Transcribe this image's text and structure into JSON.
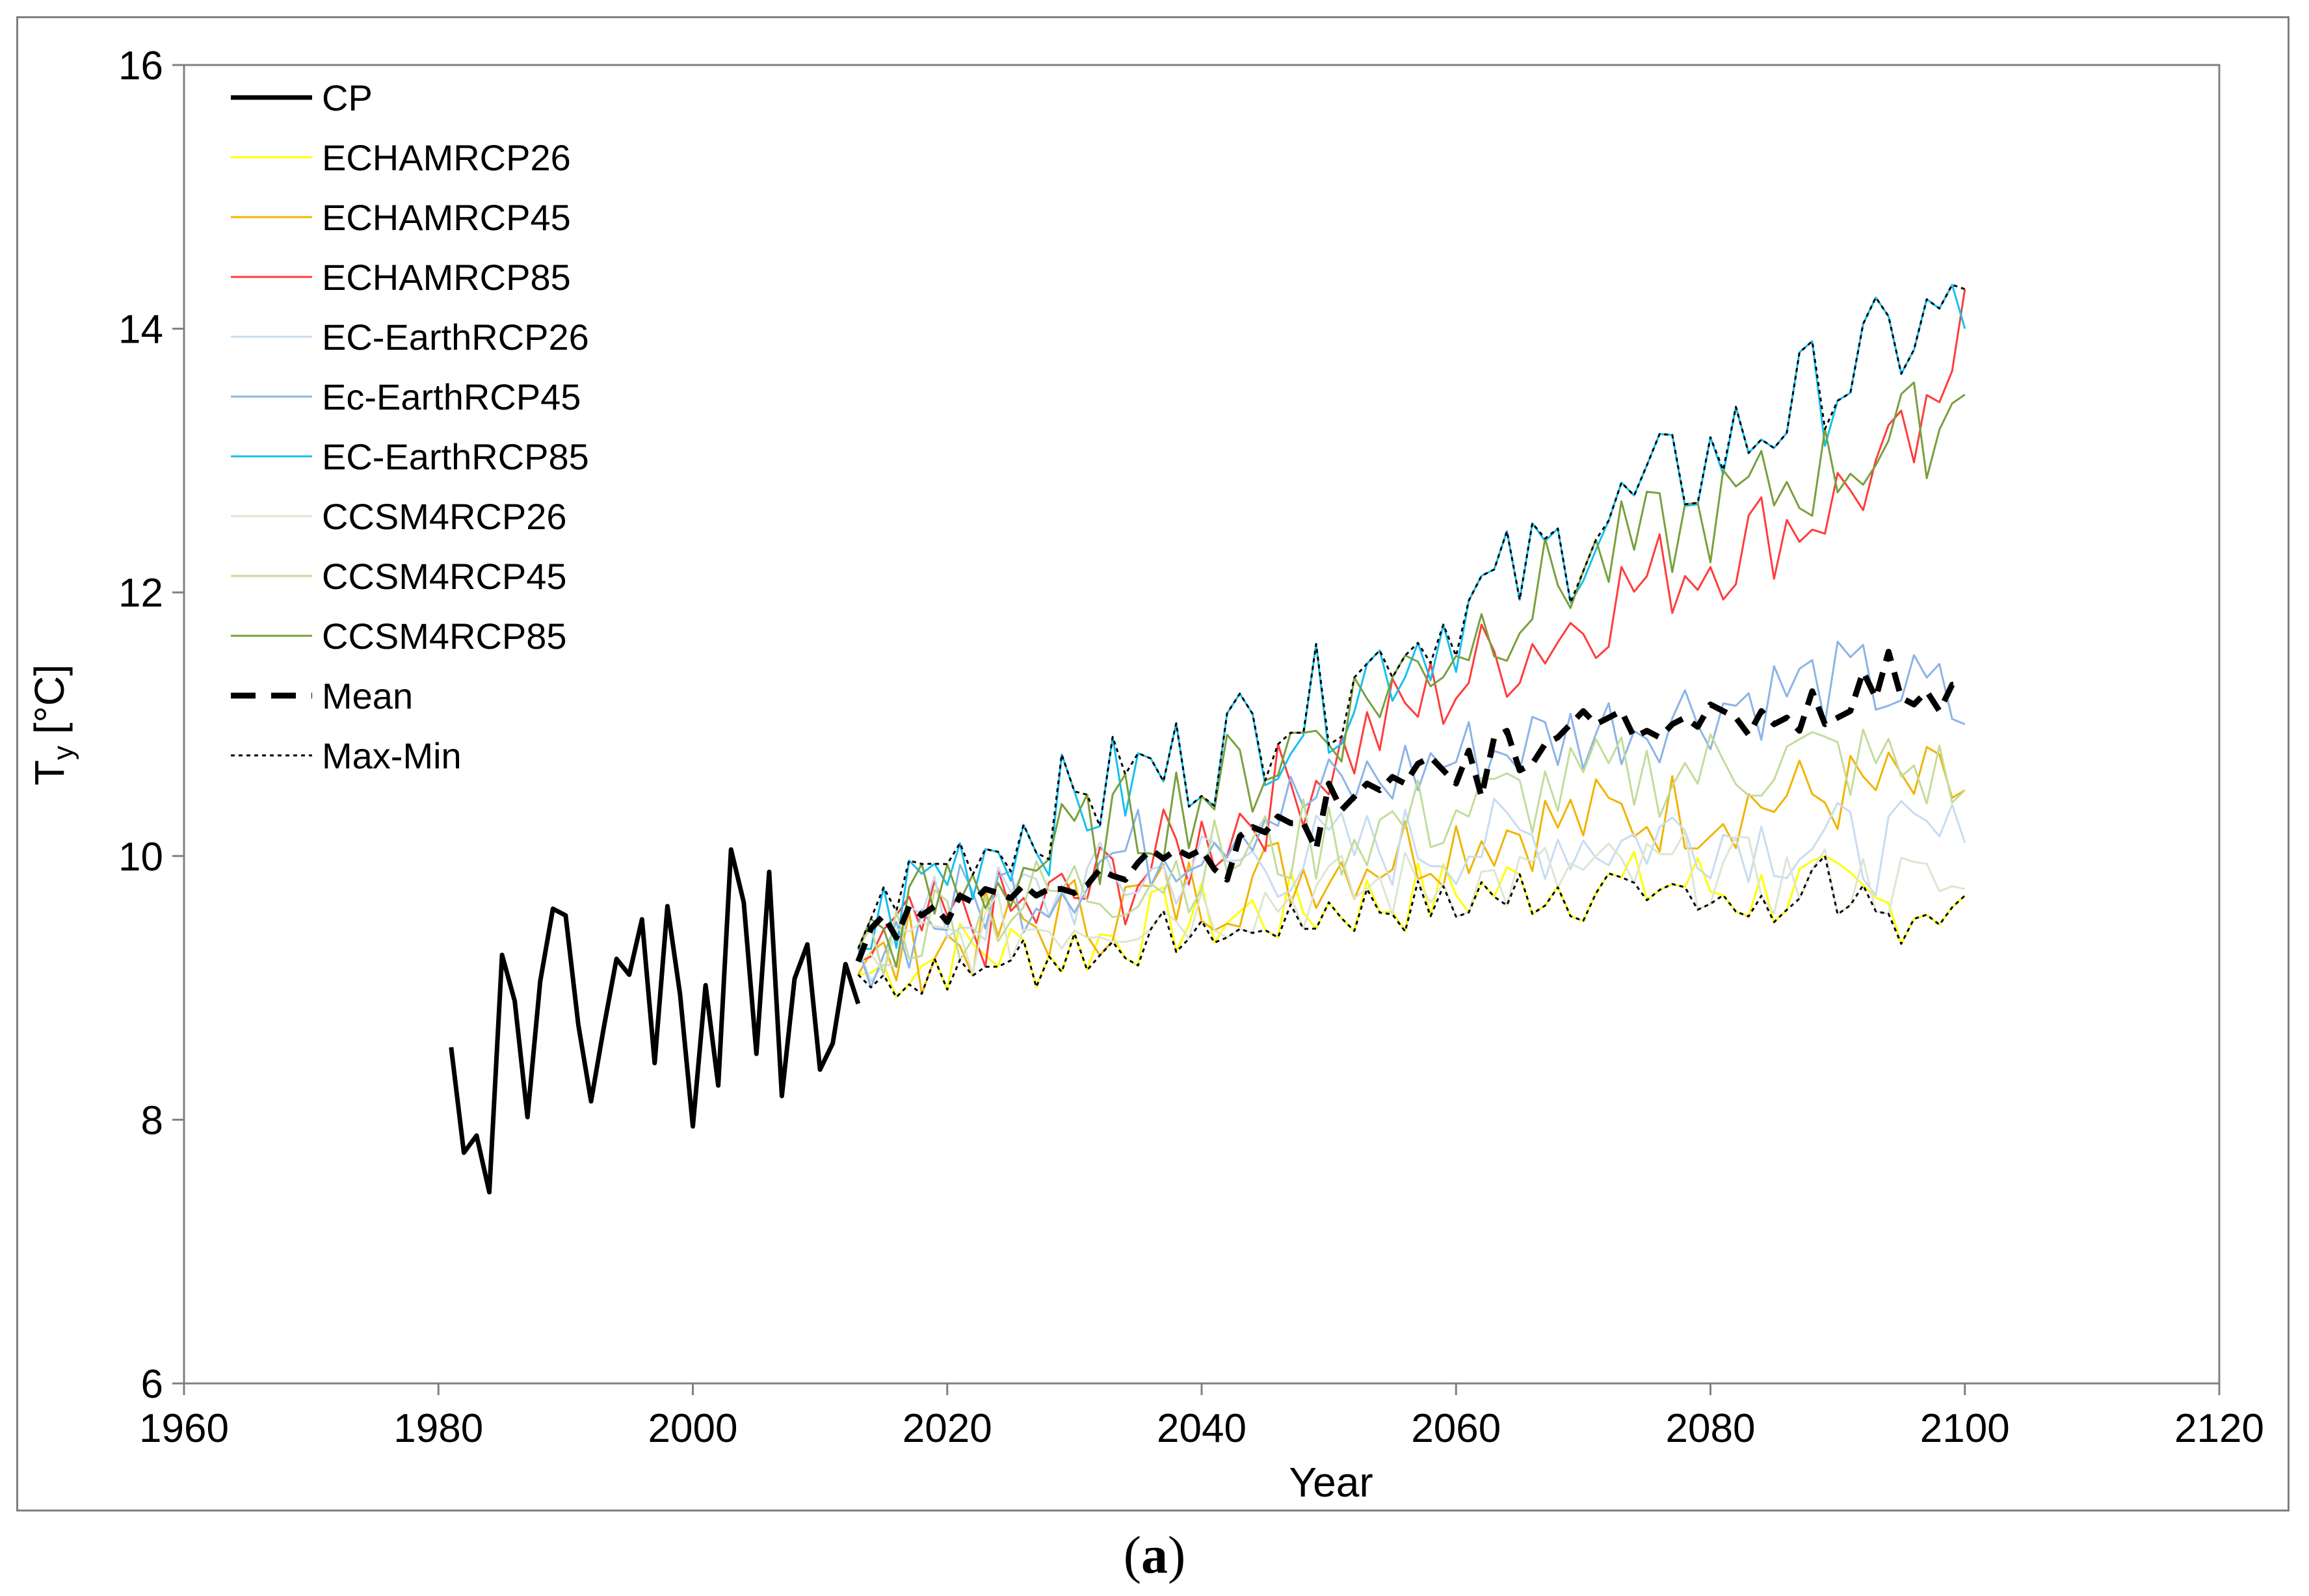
{
  "caption": {
    "open": "(",
    "letter": "a",
    "close": ")"
  },
  "chart_data": {
    "type": "line",
    "title": "",
    "xlabel": "Year",
    "ylabel_main": "T",
    "ylabel_sub": "y",
    "ylabel_unit": " [°C]",
    "xlim": [
      1960,
      2120
    ],
    "ylim": [
      6,
      16
    ],
    "xticks": [
      1960,
      1980,
      2000,
      2020,
      2040,
      2060,
      2080,
      2100,
      2120
    ],
    "yticks": [
      6,
      8,
      10,
      12,
      14,
      16
    ],
    "grid": false,
    "legend_position": "top-left",
    "series": [
      {
        "name": "CP",
        "color": "#000000",
        "style": "solid-thick",
        "x": [
          1981,
          1982,
          1983,
          1984,
          1985,
          1986,
          1987,
          1988,
          1989,
          1990,
          1991,
          1992,
          1993,
          1994,
          1995,
          1996,
          1997,
          1998,
          1999,
          2000,
          2001,
          2002,
          2003,
          2004,
          2005,
          2006,
          2007,
          2008,
          2009,
          2010,
          2011,
          2012,
          2013
        ],
        "values": [
          8.55,
          7.75,
          7.88,
          7.45,
          9.25,
          8.9,
          8.02,
          9.05,
          9.6,
          9.55,
          8.72,
          8.14,
          8.7,
          9.22,
          9.1,
          9.52,
          8.43,
          9.62,
          8.95,
          7.95,
          9.02,
          8.26,
          10.05,
          9.65,
          8.5,
          9.88,
          8.18,
          9.07,
          9.33,
          8.38,
          8.58,
          9.18,
          8.88
        ]
      },
      {
        "name": "ECHAMRCP26",
        "color": "#ffff00",
        "style": "solid",
        "x": [
          2013,
          2018,
          2023,
          2028,
          2033,
          2038,
          2043,
          2048,
          2053,
          2058,
          2063,
          2068,
          2073,
          2078,
          2083,
          2088,
          2093,
          2098,
          2100
        ],
        "values": [
          9.1,
          9.2,
          9.3,
          9.25,
          9.4,
          9.5,
          9.55,
          9.6,
          9.65,
          9.7,
          9.75,
          9.8,
          9.75,
          9.8,
          9.7,
          9.75,
          9.6,
          9.65,
          9.7
        ],
        "amplitude": 0.3
      },
      {
        "name": "ECHAMRCP45",
        "color": "#f0b400",
        "style": "solid",
        "x": [
          2013,
          2018,
          2023,
          2028,
          2033,
          2038,
          2043,
          2048,
          2053,
          2058,
          2063,
          2068,
          2073,
          2078,
          2083,
          2088,
          2093,
          2098,
          2100
        ],
        "values": [
          9.1,
          9.3,
          9.4,
          9.5,
          9.6,
          9.7,
          9.8,
          9.9,
          10.0,
          10.1,
          10.2,
          10.25,
          10.3,
          10.35,
          10.4,
          10.45,
          10.5,
          10.5,
          10.5
        ],
        "amplitude": 0.35
      },
      {
        "name": "ECHAMRCP85",
        "color": "#ff3c3c",
        "style": "solid",
        "x": [
          2013,
          2018,
          2023,
          2028,
          2033,
          2038,
          2043,
          2048,
          2053,
          2058,
          2063,
          2068,
          2073,
          2078,
          2083,
          2088,
          2093,
          2098,
          2100
        ],
        "values": [
          9.2,
          9.4,
          9.5,
          9.6,
          9.8,
          10.0,
          10.3,
          10.6,
          10.9,
          11.2,
          11.5,
          11.7,
          12.0,
          12.2,
          12.4,
          12.6,
          12.9,
          13.2,
          14.3
        ],
        "amplitude": 0.4
      },
      {
        "name": "EC-EarthRCP26",
        "color": "#c8dcf0",
        "style": "solid",
        "x": [
          2013,
          2018,
          2023,
          2028,
          2033,
          2038,
          2043,
          2048,
          2053,
          2058,
          2063,
          2068,
          2073,
          2078,
          2083,
          2088,
          2093,
          2098,
          2100
        ],
        "values": [
          9.3,
          9.5,
          9.6,
          9.7,
          9.8,
          9.9,
          9.95,
          10.0,
          10.05,
          10.1,
          10.1,
          10.15,
          10.1,
          10.2,
          10.15,
          10.1,
          10.05,
          10.1,
          10.1
        ],
        "amplitude": 0.35
      },
      {
        "name": "Ec-EarthRCP45",
        "color": "#8cb4e6",
        "style": "solid",
        "x": [
          2013,
          2018,
          2023,
          2028,
          2033,
          2038,
          2043,
          2048,
          2053,
          2058,
          2063,
          2068,
          2073,
          2078,
          2083,
          2088,
          2093,
          2098,
          2100
        ],
        "values": [
          9.3,
          9.5,
          9.7,
          9.8,
          10.0,
          10.1,
          10.3,
          10.4,
          10.55,
          10.7,
          10.8,
          10.9,
          11.0,
          11.1,
          11.2,
          11.3,
          11.3,
          11.2,
          11.0
        ],
        "amplitude": 0.35
      },
      {
        "name": "EC-EarthRCP85",
        "color": "#14c0f0",
        "style": "solid",
        "x": [
          2013,
          2018,
          2023,
          2028,
          2033,
          2038,
          2043,
          2048,
          2053,
          2058,
          2063,
          2068,
          2073,
          2078,
          2083,
          2088,
          2093,
          2098,
          2100
        ],
        "values": [
          9.3,
          9.8,
          10.1,
          10.3,
          10.5,
          10.7,
          10.9,
          11.1,
          11.4,
          11.7,
          12.0,
          12.3,
          12.6,
          12.9,
          13.2,
          13.5,
          13.8,
          14.1,
          14.0
        ],
        "amplitude": 0.45
      },
      {
        "name": "CCSM4RCP26",
        "color": "#dce6d2",
        "style": "solid",
        "x": [
          2013,
          2018,
          2023,
          2028,
          2033,
          2038,
          2043,
          2048,
          2053,
          2058,
          2063,
          2068,
          2073,
          2078,
          2083,
          2088,
          2093,
          2098,
          2100
        ],
        "values": [
          9.2,
          9.3,
          9.4,
          9.5,
          9.55,
          9.6,
          9.65,
          9.7,
          9.75,
          9.8,
          9.8,
          9.85,
          9.85,
          9.9,
          9.85,
          9.8,
          9.8,
          9.75,
          9.75
        ],
        "amplitude": 0.3
      },
      {
        "name": "CCSM4RCP45",
        "color": "#c3dc9b",
        "style": "solid",
        "x": [
          2013,
          2018,
          2023,
          2028,
          2033,
          2038,
          2043,
          2048,
          2053,
          2058,
          2063,
          2068,
          2073,
          2078,
          2083,
          2088,
          2093,
          2098,
          2100
        ],
        "values": [
          9.3,
          9.5,
          9.6,
          9.7,
          9.8,
          9.9,
          10.0,
          10.1,
          10.2,
          10.3,
          10.4,
          10.5,
          10.6,
          10.65,
          10.7,
          10.75,
          10.7,
          10.6,
          10.5
        ],
        "amplitude": 0.35
      },
      {
        "name": "CCSM4RCP85",
        "color": "#78a03c",
        "style": "solid",
        "x": [
          2013,
          2018,
          2023,
          2028,
          2033,
          2038,
          2043,
          2048,
          2053,
          2058,
          2063,
          2068,
          2073,
          2078,
          2083,
          2088,
          2093,
          2098,
          2100
        ],
        "values": [
          9.3,
          9.6,
          9.8,
          10.0,
          10.2,
          10.4,
          10.6,
          10.9,
          11.2,
          11.5,
          11.8,
          12.1,
          12.3,
          12.5,
          12.7,
          12.9,
          13.1,
          13.3,
          13.5
        ],
        "amplitude": 0.4
      },
      {
        "name": "Mean",
        "color": "#000000",
        "style": "dashed-thick",
        "x": [
          2013,
          2014,
          2015,
          2016,
          2017,
          2018,
          2019,
          2020,
          2021,
          2022,
          2023,
          2024,
          2025,
          2026,
          2027,
          2028,
          2029,
          2030,
          2031,
          2032,
          2033,
          2034,
          2035,
          2036,
          2037,
          2038,
          2039,
          2040,
          2041,
          2042,
          2043,
          2044,
          2045,
          2046,
          2047,
          2048,
          2049,
          2050,
          2051,
          2052,
          2053,
          2054,
          2055,
          2056,
          2057,
          2058,
          2059,
          2060,
          2061,
          2062,
          2063,
          2064,
          2065,
          2066,
          2067,
          2068,
          2069,
          2070,
          2071,
          2072,
          2073,
          2074,
          2075,
          2076,
          2077,
          2078,
          2079,
          2080,
          2081,
          2082,
          2083,
          2084,
          2085,
          2086,
          2087,
          2088,
          2089,
          2090,
          2091,
          2092,
          2093,
          2094,
          2095,
          2096,
          2097,
          2098,
          2099,
          2100
        ],
        "values": [
          9.2,
          9.45,
          9.55,
          9.38,
          9.62,
          9.55,
          9.62,
          9.5,
          9.7,
          9.65,
          9.75,
          9.72,
          9.68,
          9.78,
          9.7,
          9.75,
          9.75,
          9.72,
          9.78,
          9.9,
          9.85,
          9.82,
          9.95,
          10.05,
          9.98,
          10.05,
          10.0,
          10.05,
          9.9,
          9.82,
          10.15,
          10.22,
          10.18,
          10.3,
          10.25,
          10.25,
          10.05,
          10.55,
          10.35,
          10.45,
          10.55,
          10.5,
          10.6,
          10.55,
          10.7,
          10.75,
          10.65,
          10.55,
          10.8,
          10.45,
          10.9,
          10.95,
          10.65,
          10.7,
          10.85,
          10.9,
          11.0,
          11.1,
          11.0,
          11.05,
          11.1,
          10.9,
          10.95,
          10.9,
          11.0,
          11.05,
          10.98,
          11.15,
          11.1,
          11.05,
          10.92,
          11.1,
          11.0,
          11.05,
          10.95,
          11.25,
          11.0,
          11.05,
          11.1,
          11.4,
          11.2,
          11.55,
          11.2,
          11.15,
          11.25,
          11.1,
          11.3,
          11.3
        ],
        "amplitude": 0
      }
    ],
    "legend": [
      {
        "label": "CP",
        "color": "#000000",
        "style": "solid-thick"
      },
      {
        "label": "ECHAMRCP26",
        "color": "#ffff00",
        "style": "solid"
      },
      {
        "label": "ECHAMRCP45",
        "color": "#f0b400",
        "style": "solid"
      },
      {
        "label": "ECHAMRCP85",
        "color": "#ff3c3c",
        "style": "solid"
      },
      {
        "label": "EC-EarthRCP26",
        "color": "#c8dcf0",
        "style": "solid"
      },
      {
        "label": "Ec-EarthRCP45",
        "color": "#8cb4e6",
        "style": "solid"
      },
      {
        "label": "EC-EarthRCP85",
        "color": "#14c0f0",
        "style": "solid"
      },
      {
        "label": "CCSM4RCP26",
        "color": "#dce6d2",
        "style": "solid"
      },
      {
        "label": "CCSM4RCP45",
        "color": "#c3dc9b",
        "style": "solid"
      },
      {
        "label": "CCSM4RCP85",
        "color": "#78a03c",
        "style": "solid"
      },
      {
        "label": "Mean",
        "color": "#000000",
        "style": "dashed-thick"
      },
      {
        "label": "Max-Min",
        "color": "#000000",
        "style": "dotted"
      }
    ]
  }
}
